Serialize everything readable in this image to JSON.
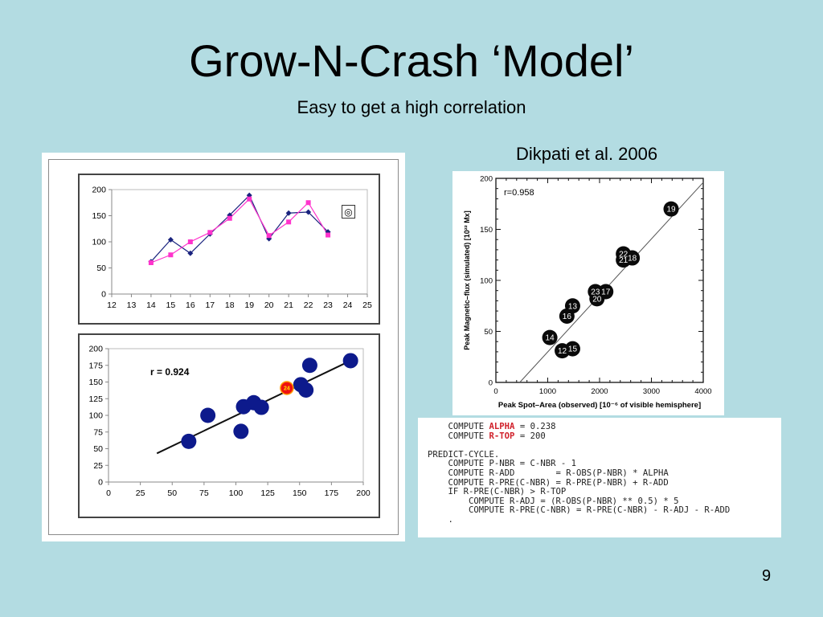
{
  "slide": {
    "title": "Grow-N-Crash ‘Model’",
    "subtitle": "Easy to get a high correlation",
    "credit": "Dikpati et al. 2006",
    "number": "9"
  },
  "chart_data": [
    {
      "id": "cycle-line-chart",
      "type": "line",
      "x": [
        14,
        15,
        16,
        17,
        18,
        19,
        20,
        21,
        22,
        23
      ],
      "series": [
        {
          "values": [
            62,
            104,
            78,
            115,
            151,
            189,
            106,
            155,
            157,
            119
          ],
          "color": "#1a237e",
          "marker": "diamond"
        },
        {
          "values": [
            60,
            75,
            100,
            118,
            145,
            182,
            112,
            138,
            175,
            113
          ],
          "color": "#ff33cc",
          "marker": "square"
        }
      ],
      "xlim": [
        12,
        25
      ],
      "ylim": [
        0,
        200
      ],
      "xticks": [
        "12",
        "13",
        "14",
        "15",
        "16",
        "17",
        "18",
        "19",
        "20",
        "21",
        "22",
        "23",
        "24",
        "25"
      ],
      "yticks": [
        "0",
        "50",
        "100",
        "150",
        "200"
      ],
      "marker_symbol": "◎",
      "marker_position": {
        "x": 24,
        "y": 150
      },
      "grid": false
    },
    {
      "id": "fit-scatter-chart",
      "type": "scatter",
      "annotation": "r = 0.924",
      "points": [
        {
          "x": 63,
          "y": 61
        },
        {
          "x": 78,
          "y": 100
        },
        {
          "x": 104,
          "y": 76
        },
        {
          "x": 106,
          "y": 113
        },
        {
          "x": 114,
          "y": 119
        },
        {
          "x": 120,
          "y": 112
        },
        {
          "x": 151,
          "y": 146
        },
        {
          "x": 155,
          "y": 138
        },
        {
          "x": 158,
          "y": 175
        },
        {
          "x": 190,
          "y": 182
        }
      ],
      "highlight": {
        "x": 140,
        "y": 141,
        "label": "24",
        "color": "#ee1111"
      },
      "fit_line": [
        [
          38,
          43
        ],
        [
          190,
          182
        ]
      ],
      "xlim": [
        0,
        200
      ],
      "ylim": [
        0,
        200
      ],
      "xticks": [
        "0",
        "25",
        "50",
        "75",
        "100",
        "125",
        "150",
        "175",
        "200"
      ],
      "yticks": [
        "0",
        "25",
        "50",
        "75",
        "100",
        "125",
        "150",
        "175",
        "200"
      ],
      "point_color": "#0d1a8c",
      "grid": false
    },
    {
      "id": "dikpati-scatter-chart",
      "type": "scatter",
      "annotation": "r=0.958",
      "xlabel": "Peak Spot–Area (observed) [10⁻⁶ of visible hemisphere]",
      "ylabel": "Peak Magnetic–flux (simulated) [10²² Mx]",
      "points": [
        {
          "label": "19",
          "x": 3380,
          "y": 170
        },
        {
          "label": "22",
          "x": 2460,
          "y": 126
        },
        {
          "label": "21",
          "x": 2460,
          "y": 120
        },
        {
          "label": "18",
          "x": 2630,
          "y": 122
        },
        {
          "label": "23",
          "x": 1920,
          "y": 89
        },
        {
          "label": "17",
          "x": 2120,
          "y": 89
        },
        {
          "label": "20",
          "x": 1950,
          "y": 82
        },
        {
          "label": "13",
          "x": 1480,
          "y": 75
        },
        {
          "label": "16",
          "x": 1370,
          "y": 65
        },
        {
          "label": "14",
          "x": 1040,
          "y": 44
        },
        {
          "label": "12",
          "x": 1280,
          "y": 31
        },
        {
          "label": "15",
          "x": 1480,
          "y": 33
        }
      ],
      "fit_line": [
        [
          460,
          0
        ],
        [
          4000,
          196
        ]
      ],
      "xlim": [
        0,
        4000
      ],
      "ylim": [
        0,
        200
      ],
      "xticks": [
        "0",
        "1000",
        "2000",
        "3000",
        "4000"
      ],
      "yticks": [
        "0",
        "50",
        "100",
        "150",
        "200"
      ],
      "grid": false
    }
  ],
  "code": {
    "lines": [
      [
        "    COMPUTE ",
        {
          "kw": "ALPHA"
        },
        " = 0.238"
      ],
      [
        "    COMPUTE ",
        {
          "kw": "R-TOP"
        },
        " = 200"
      ],
      [
        ""
      ],
      [
        "PREDICT-CYCLE."
      ],
      [
        "    COMPUTE P-NBR = C-NBR - 1"
      ],
      [
        "    COMPUTE R-ADD        = R-OBS(P-NBR) * ALPHA"
      ],
      [
        "    COMPUTE R-PRE(C-NBR) = R-PRE(P-NBR) + R-ADD"
      ],
      [
        "    IF R-PRE(C-NBR) > R-TOP"
      ],
      [
        "        COMPUTE R-ADJ = (R-OBS(P-NBR) ** 0.5) * 5"
      ],
      [
        "        COMPUTE R-PRE(C-NBR) = R-PRE(C-NBR) - R-ADJ - R-ADD"
      ],
      [
        "    ."
      ]
    ]
  }
}
